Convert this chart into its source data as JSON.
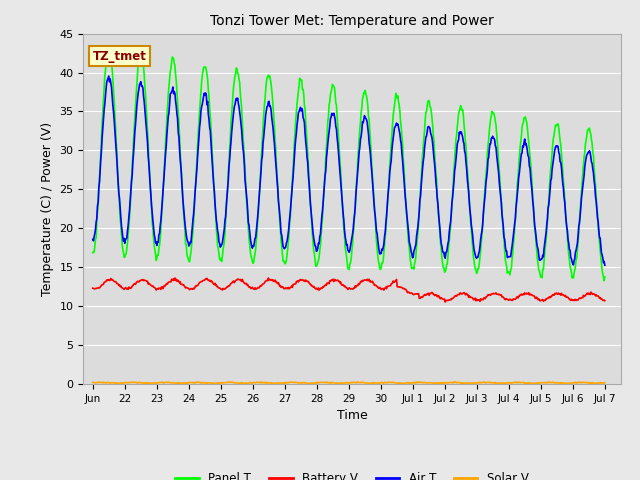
{
  "title": "Tonzi Tower Met: Temperature and Power",
  "xlabel": "Time",
  "ylabel": "Temperature (C) / Power (V)",
  "annotation_text": "TZ_tmet",
  "annotation_bg": "#FFFFCC",
  "annotation_border": "#CC8800",
  "annotation_text_color": "#880000",
  "ylim": [
    0,
    45
  ],
  "yticks": [
    0,
    5,
    10,
    15,
    20,
    25,
    30,
    35,
    40,
    45
  ],
  "panel_t_color": "#00FF00",
  "battery_v_color": "#FF0000",
  "air_t_color": "#0000FF",
  "solar_v_color": "#FFA500",
  "fig_bg_color": "#E8E8E8",
  "plot_bg_color": "#DCDCDC",
  "grid_color": "#FFFFFF",
  "line_width": 1.2,
  "legend_labels": [
    "Panel T",
    "Battery V",
    "Air T",
    "Solar V"
  ],
  "x_tick_labels": [
    "Jun",
    "22",
    "23",
    "24",
    "25",
    "26",
    "27",
    "28",
    "29",
    "30",
    "Jul 1",
    "Jul 2",
    "Jul 3",
    "Jul 4",
    "Jul 5",
    "Jul 6",
    "Jul 7"
  ],
  "x_tick_positions": [
    0,
    1,
    2,
    3,
    4,
    5,
    6,
    7,
    8,
    9,
    10,
    11,
    12,
    13,
    14,
    15,
    16
  ],
  "xlim": [
    -0.3,
    16.5
  ]
}
